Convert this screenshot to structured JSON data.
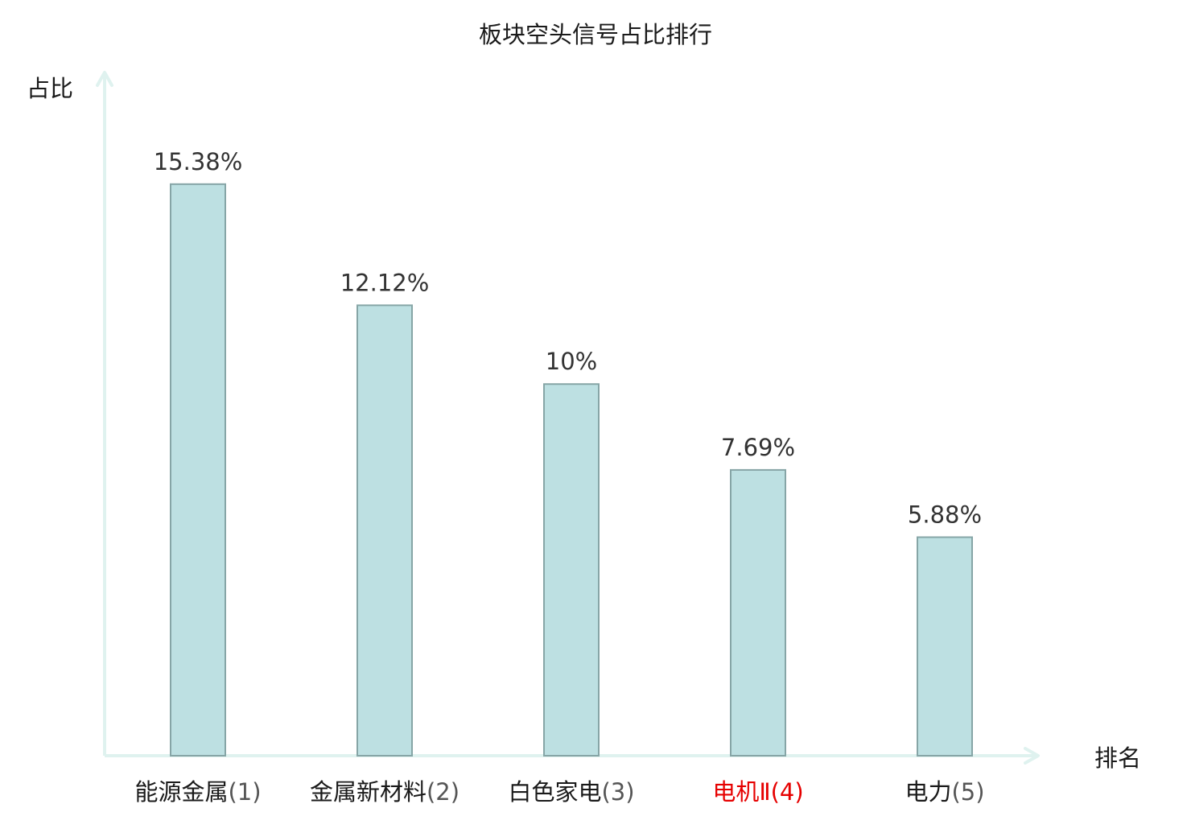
{
  "chart_data": {
    "type": "bar",
    "title": "板块空头信号占比排行",
    "ylabel": "占比",
    "xlabel": "排名",
    "categories": [
      {
        "name": "能源金属",
        "rank": "(1)",
        "highlight": false
      },
      {
        "name": "金属新材料",
        "rank": "(2)",
        "highlight": false
      },
      {
        "name": "白色家电",
        "rank": "(3)",
        "highlight": false
      },
      {
        "name": "电机Ⅱ",
        "rank": "(4)",
        "highlight": true
      },
      {
        "name": "电力",
        "rank": "(5)",
        "highlight": false
      }
    ],
    "values": [
      15.38,
      12.12,
      10,
      7.69,
      5.88
    ],
    "value_labels": [
      "15.38%",
      "12.12%",
      "10%",
      "7.69%",
      "5.88%"
    ],
    "ylim": [
      0,
      17
    ],
    "grid": false,
    "legend": "none"
  },
  "colors": {
    "bar_fill": "#bde0e2",
    "bar_stroke": "#86a5a6",
    "axis": "#dff2ef",
    "highlight": "#e60000",
    "text": "#1a1a1a"
  }
}
